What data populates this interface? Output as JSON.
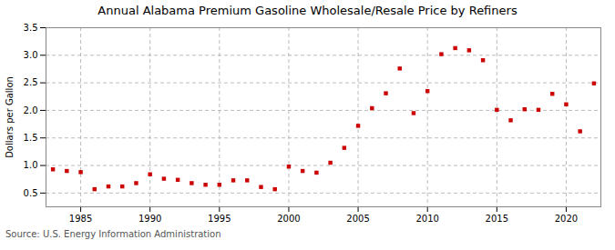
{
  "chart_data": {
    "type": "scatter",
    "title": "Annual Alabama Premium Gasoline Wholesale/Resale Price by Refiners",
    "ylabel": "Dollars per Gallon",
    "annotations": [
      "Source: U.S. Energy Information Administration"
    ],
    "color": "#cc0000",
    "marker": "square",
    "grid": true,
    "xlim": [
      1982.5,
      2022.5
    ],
    "ylim": [
      0.25,
      3.5
    ],
    "xticks": [
      1985,
      1990,
      1995,
      2000,
      2005,
      2010,
      2015,
      2020
    ],
    "yticks": [
      0.5,
      {
        "value": 1,
        "label": "1.0"
      },
      1.5,
      {
        "value": 2,
        "label": "2.0"
      },
      2.5,
      {
        "value": 3,
        "label": "3.0"
      },
      3.5
    ],
    "x": [
      1983,
      1984,
      1985,
      1986,
      1987,
      1988,
      1989,
      1990,
      1991,
      1992,
      1993,
      1994,
      1995,
      1996,
      1997,
      1998,
      1999,
      2000,
      2001,
      2002,
      2003,
      2004,
      2005,
      2006,
      2007,
      2008,
      2009,
      2010,
      2011,
      2012,
      2013,
      2014,
      2015,
      2016,
      2017,
      2018,
      2019,
      2020,
      2021,
      2022
    ],
    "values": [
      0.93,
      0.9,
      0.88,
      0.57,
      0.62,
      0.62,
      0.68,
      0.84,
      0.76,
      0.74,
      0.68,
      0.65,
      0.65,
      0.73,
      0.73,
      0.61,
      0.57,
      0.98,
      0.9,
      0.87,
      1.05,
      1.32,
      1.72,
      2.04,
      2.31,
      2.76,
      1.95,
      2.35,
      3.02,
      3.13,
      3.09,
      2.91,
      2.01,
      1.82,
      2.02,
      2.01,
      2.3,
      2.11,
      1.62,
      2.49
    ]
  }
}
